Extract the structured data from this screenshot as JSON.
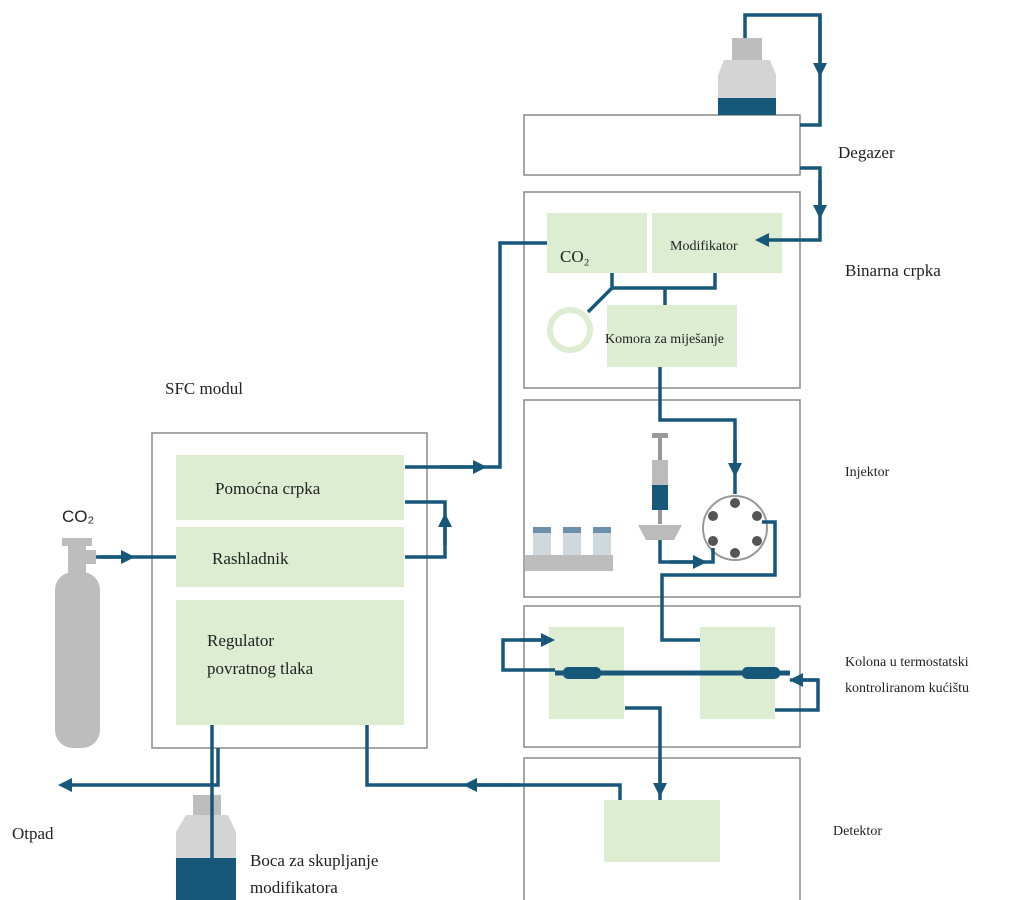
{
  "labels": {
    "degazer": "Degazer",
    "binary_pump": "Binarna crpka",
    "pump_co2": "CO₂",
    "modifier": "Modifikator",
    "mixing_chamber": "Komora za miješanje",
    "sfc_module": "SFC modul",
    "injector": "Injektor",
    "cylinder_co2": "CO₂",
    "aux_pump": "Pomoćna crpka",
    "cooler": "Rashladnik",
    "regulator": [
      "Regulator",
      "povratnog tlaka"
    ],
    "column": [
      "Kolona u termostatski",
      "kontroliranom kućištu"
    ],
    "waste": "Otpad",
    "detector": "Detektor",
    "collection_bottle": [
      "Boca za skupljanje",
      "modifikatora"
    ]
  }
}
